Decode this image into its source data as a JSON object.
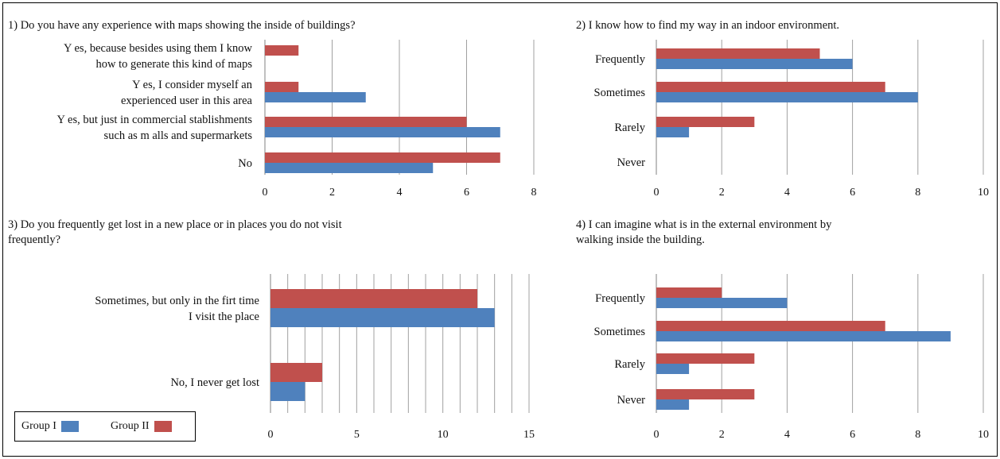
{
  "colors": {
    "group1": "#4f81bd",
    "group2": "#c0504d",
    "grid": "#a0a0a0",
    "axis": "#808080"
  },
  "legend": {
    "group1_label": "Group I",
    "group2_label": "Group II"
  },
  "chart_data": [
    {
      "type": "bar",
      "orientation": "horizontal",
      "title": [
        "1) Do you have any experience with maps showing the inside of buildings?"
      ],
      "categories": [
        [
          "Y es, because besides using them I know",
          "how  to generate this kind of maps"
        ],
        [
          "Y es, I consider myself an",
          "experienced user in this area"
        ],
        [
          "Y es, but just in commercial stablishments",
          "such as m alls and supermarkets"
        ],
        [
          "No"
        ]
      ],
      "series": [
        {
          "name": "Group II",
          "values": [
            1,
            1,
            6,
            7
          ]
        },
        {
          "name": "Group I",
          "values": [
            0,
            3,
            7,
            5
          ]
        }
      ],
      "xlim": [
        0,
        8
      ],
      "ticks": [
        0,
        2,
        4,
        6,
        8
      ],
      "grid": true
    },
    {
      "type": "bar",
      "orientation": "horizontal",
      "title": [
        "2) I know how to find my way in an indoor environment."
      ],
      "categories": [
        [
          "Frequently"
        ],
        [
          "Sometimes"
        ],
        [
          "Rarely"
        ],
        [
          "Never"
        ]
      ],
      "series": [
        {
          "name": "Group II",
          "values": [
            5,
            7,
            3,
            0
          ]
        },
        {
          "name": "Group I",
          "values": [
            6,
            8,
            1,
            0
          ]
        }
      ],
      "xlim": [
        0,
        10
      ],
      "ticks": [
        0,
        2,
        4,
        6,
        8,
        10
      ],
      "grid": true
    },
    {
      "type": "bar",
      "orientation": "horizontal",
      "title": [
        "3) Do you frequently  get lost in a new place or in places you do not visit",
        "frequently?"
      ],
      "categories": [
        [
          "Sometimes, but only in the firt time",
          "I visit the place"
        ],
        [
          "No, I never get lost"
        ]
      ],
      "series": [
        {
          "name": "Group II",
          "values": [
            12,
            3
          ]
        },
        {
          "name": "Group I",
          "values": [
            13,
            2
          ]
        }
      ],
      "xlim": [
        0,
        15
      ],
      "ticks": [
        0,
        5,
        10,
        15
      ],
      "grid": true
    },
    {
      "type": "bar",
      "orientation": "horizontal",
      "title": [
        "4) I can imagine what is in the external environment by",
        "walking inside the building."
      ],
      "categories": [
        [
          "Frequently"
        ],
        [
          "Sometimes"
        ],
        [
          "Rarely"
        ],
        [
          "Never"
        ]
      ],
      "series": [
        {
          "name": "Group II",
          "values": [
            2,
            7,
            3,
            3
          ]
        },
        {
          "name": "Group I",
          "values": [
            4,
            9,
            1,
            1
          ]
        }
      ],
      "xlim": [
        0,
        10
      ],
      "ticks": [
        0,
        2,
        4,
        6,
        8,
        10
      ],
      "grid": true
    }
  ]
}
